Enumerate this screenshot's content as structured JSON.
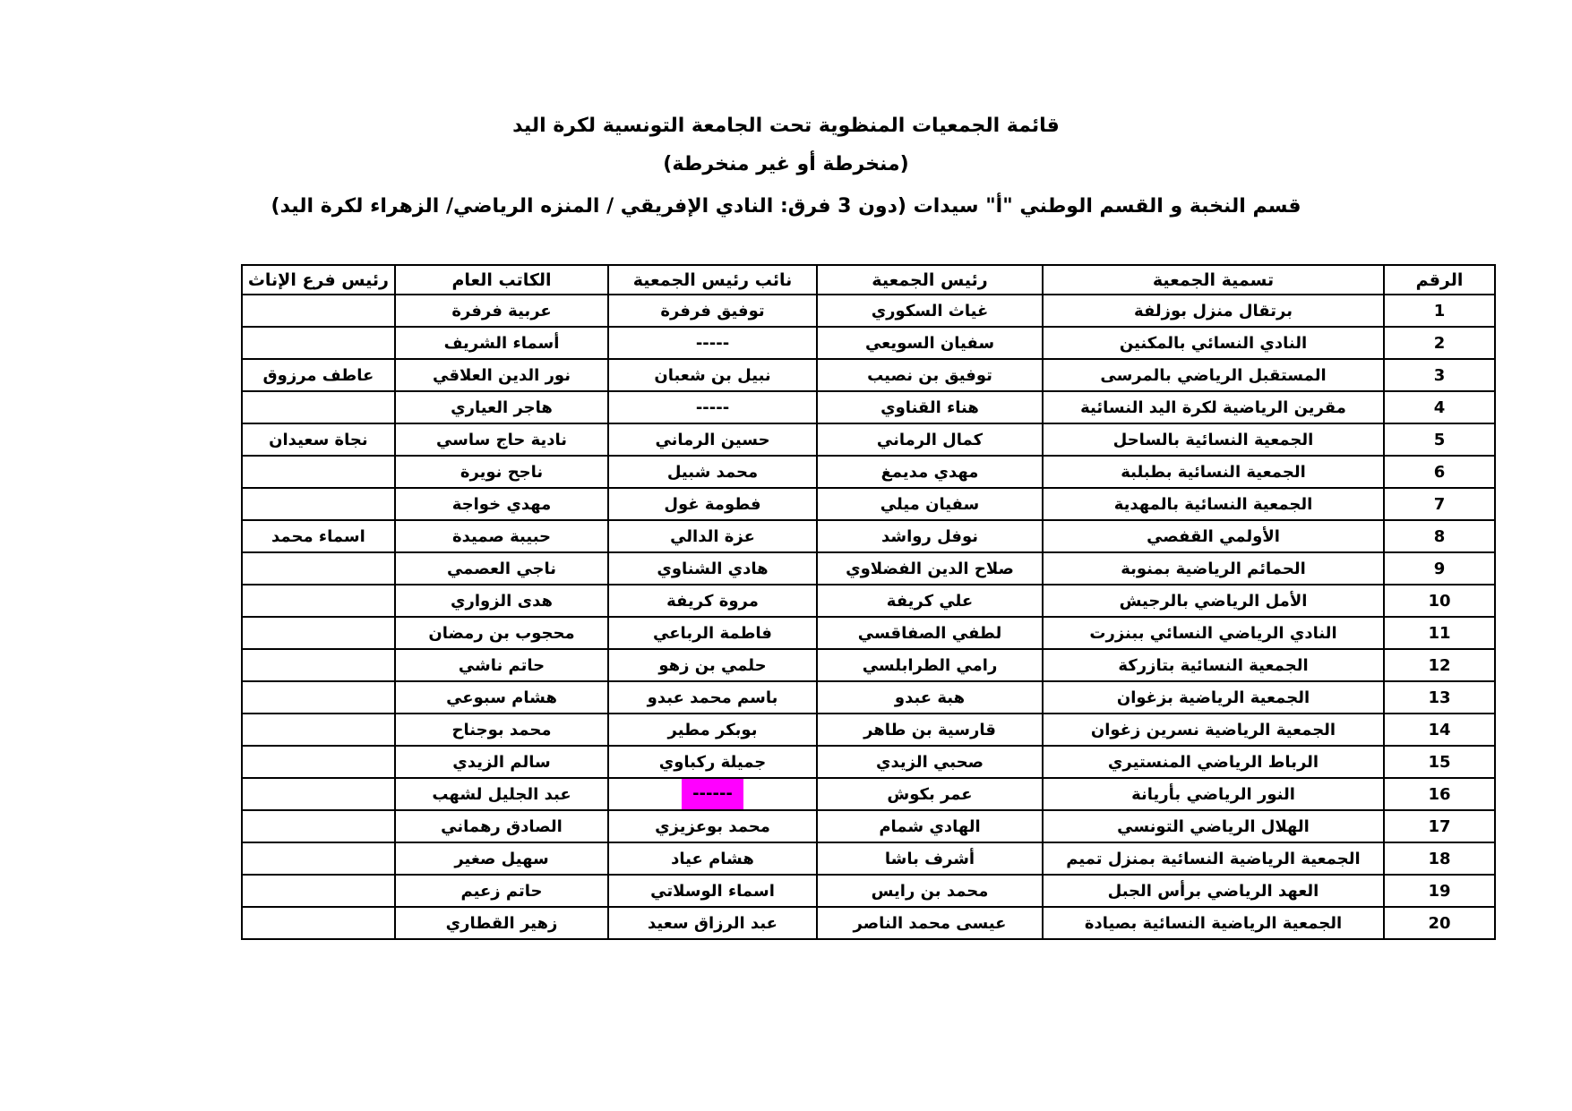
{
  "document": {
    "title": "قائمة الجمعيات المنظوية تحت الجامعة التونسية لكرة اليد",
    "subtitle": "(منخرطة أو غير منخرطة)",
    "section_line": "قسم النخبة و القسم الوطني \"أ\" سيدات (دون 3 فرق:  النادي الإفريقي / المنزه الرياضي/ الزهراء لكرة اليد)"
  },
  "table": {
    "headers": {
      "num": "الرقم",
      "name": "تسمية الجمعية",
      "president": "رئيس الجمعية",
      "vice": "نائب رئيس الجمعية",
      "secretary": "الكاتب العام",
      "women_branch": "رئيس فرع الإناث"
    },
    "highlight_color": "#ff00ff",
    "rows": [
      {
        "num": "1",
        "name": "برتقال منزل بوزلفة",
        "president": "غياث السكوري",
        "vice": "توفيق فرفرة",
        "secretary": "عربية فرفرة",
        "women_branch": ""
      },
      {
        "num": "2",
        "name": "النادي النسائي بالمكنين",
        "president": "سفيان السويعي",
        "vice": "-----",
        "secretary": "أسماء الشريف",
        "women_branch": ""
      },
      {
        "num": "3",
        "name": "المستقبل الرياضي بالمرسى",
        "president": "توفيق بن نصيب",
        "vice": "نبيل بن شعبان",
        "secretary": "نور الدين العلاقي",
        "women_branch": "عاطف مرزوق"
      },
      {
        "num": "4",
        "name": "مقرين الرياضية لكرة اليد النسائية",
        "president": "هناء القناوي",
        "vice": "-----",
        "secretary": "هاجر العياري",
        "women_branch": ""
      },
      {
        "num": "5",
        "name": "الجمعية النسائية بالساحل",
        "president": "كمال الرماني",
        "vice": "حسين الرماني",
        "secretary": "نادية حاج ساسي",
        "women_branch": "نجاة سعيدان"
      },
      {
        "num": "6",
        "name": "الجمعية النسائية بطبلبة",
        "president": "مهدي مديمغ",
        "vice": "محمد شبيل",
        "secretary": "ناجح نويرة",
        "women_branch": ""
      },
      {
        "num": "7",
        "name": "الجمعية النسائية بالمهدية",
        "president": "سفيان ميلي",
        "vice": "فطومة غول",
        "secretary": "مهدي خواجة",
        "women_branch": ""
      },
      {
        "num": "8",
        "name": "الأولمي القفصي",
        "president": "نوفل رواشد",
        "vice": "عزة الدالي",
        "secretary": "حبيبة صميدة",
        "women_branch": "اسماء محمد"
      },
      {
        "num": "9",
        "name": "الحمائم الرياضية بمنوبة",
        "president": "صلاح الدين الفضلاوي",
        "vice": "هادي الشناوي",
        "secretary": "ناجي العصمي",
        "women_branch": ""
      },
      {
        "num": "10",
        "name": "الأمل الرياضي بالرجيش",
        "president": "علي كريفة",
        "vice": "مروة كريفة",
        "secretary": "هدى الزواري",
        "women_branch": ""
      },
      {
        "num": "11",
        "name": "النادي الرياضي النسائي ببنزرت",
        "president": "لطفي الصفاقسي",
        "vice": "فاطمة الرباعي",
        "secretary": "محجوب بن رمضان",
        "women_branch": ""
      },
      {
        "num": "12",
        "name": "الجمعية النسائية بتازركة",
        "president": "رامي الطرابلسي",
        "vice": "حلمي بن زهو",
        "secretary": "حاتم ناشي",
        "women_branch": ""
      },
      {
        "num": "13",
        "name": "الجمعية الرياضية بزغوان",
        "president": "هبة عبدو",
        "vice": "باسم محمد عبدو",
        "secretary": "هشام سبوعي",
        "women_branch": ""
      },
      {
        "num": "14",
        "name": "الجمعية الرياضية نسرين زغوان",
        "president": "قارسية بن طاهر",
        "vice": "بوبكر مطير",
        "secretary": "محمد بوجناح",
        "women_branch": ""
      },
      {
        "num": "15",
        "name": "الرباط الرياضي المنستيري",
        "president": "صحبي الزيدي",
        "vice": "جميلة ركباوي",
        "secretary": "سالم الزيدي",
        "women_branch": ""
      },
      {
        "num": "16",
        "name": "النور الرياضي بأريانة",
        "president": "عمر بكوش",
        "vice": "------",
        "vice_highlighted": true,
        "secretary": "عبد الجليل لشهب",
        "women_branch": ""
      },
      {
        "num": "17",
        "name": "الهلال الرياضي التونسي",
        "president": "الهادي شمام",
        "vice": "محمد بوعزيزي",
        "secretary": "الصادق رهماني",
        "women_branch": ""
      },
      {
        "num": "18",
        "name": "الجمعية الرياضية النسائية بمنزل تميم",
        "president": "أشرف باشا",
        "vice": "هشام عياد",
        "secretary": "سهيل صغير",
        "women_branch": ""
      },
      {
        "num": "19",
        "name": "العهد الرياضي برأس الجبل",
        "president": "محمد بن رايس",
        "vice": "اسماء الوسلاتي",
        "secretary": "حاتم زعيم",
        "women_branch": ""
      },
      {
        "num": "20",
        "name": "الجمعية الرياضية النسائية بصيادة",
        "president": "عيسى محمد الناصر",
        "vice": "عبد الرزاق سعيد",
        "secretary": "زهير القطاري",
        "women_branch": ""
      }
    ]
  }
}
